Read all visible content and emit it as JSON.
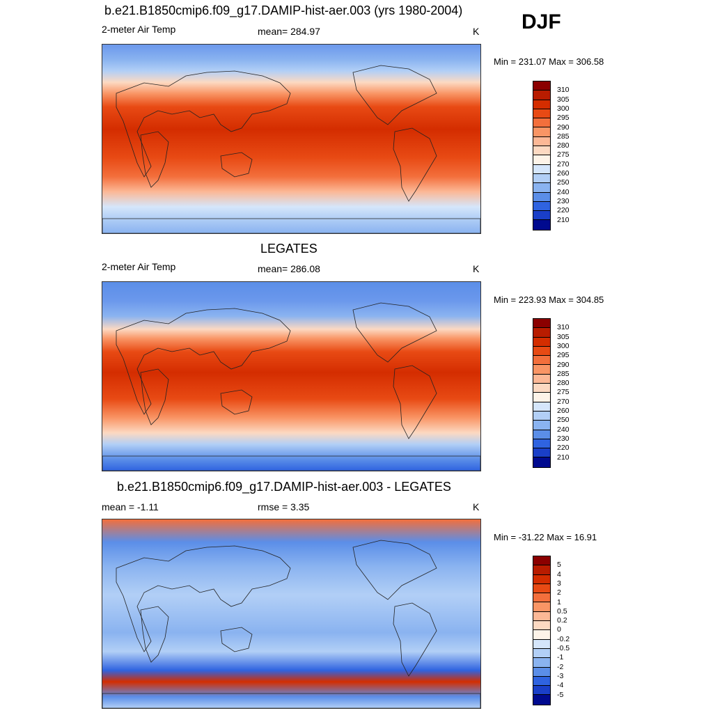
{
  "season": "DJF",
  "panels": [
    {
      "id": "model",
      "title": "b.e21.B1850cmip6.f09_g17.DAMIP-hist-aer.003 (yrs 1980-2004)",
      "left_label": "2-meter Air Temp",
      "center_label": "mean= 284.97",
      "units": "K",
      "minmax": "Min = 231.07 Max = 306.58"
    },
    {
      "id": "obs",
      "title": "LEGATES",
      "left_label": "2-meter Air Temp",
      "center_label": "mean= 286.08",
      "units": "K",
      "minmax": "Min = 223.93 Max = 304.85"
    },
    {
      "id": "diff",
      "title": "b.e21.B1850cmip6.f09_g17.DAMIP-hist-aer.003 - LEGATES",
      "left_label": "mean =  -1.11",
      "center_label": "rmse =   3.35",
      "units": "K",
      "minmax": "Min = -31.22 Max =  16.91"
    }
  ],
  "colorbars": {
    "abs": {
      "levels": [
        "310",
        "305",
        "300",
        "295",
        "290",
        "285",
        "280",
        "275",
        "270",
        "260",
        "250",
        "240",
        "230",
        "220",
        "210"
      ],
      "colors": [
        "#8b0000",
        "#b81c00",
        "#d42d00",
        "#e84a14",
        "#f36f3c",
        "#f99565",
        "#fcb896",
        "#fcd9c2",
        "#fdf3e8",
        "#d5e6fb",
        "#b2cff6",
        "#8ab3f0",
        "#5b8ee8",
        "#2f63e0",
        "#1a3fc8",
        "#000a8f"
      ]
    },
    "diff": {
      "levels": [
        "5",
        "4",
        "3",
        "2",
        "1",
        "0.5",
        "0.2",
        "0",
        "-0.2",
        "-0.5",
        "-1",
        "-2",
        "-3",
        "-4",
        "-5"
      ],
      "colors": [
        "#8b0000",
        "#b81c00",
        "#d42d00",
        "#e84a14",
        "#f36f3c",
        "#f99565",
        "#fcb896",
        "#fcd9c2",
        "#fdf3e8",
        "#d5e6fb",
        "#b2cff6",
        "#8ab3f0",
        "#5b8ee8",
        "#2f63e0",
        "#1a3fc8",
        "#000a8f"
      ]
    }
  },
  "maps": {
    "model_bands": [
      [
        "#6b98ec",
        0.0
      ],
      [
        "#8ab3f0",
        0.08
      ],
      [
        "#b2cff6",
        0.14
      ],
      [
        "#fcd9c2",
        0.2
      ],
      [
        "#f99565",
        0.26
      ],
      [
        "#e84a14",
        0.33
      ],
      [
        "#d42d00",
        0.45
      ],
      [
        "#e84a14",
        0.6
      ],
      [
        "#f36f3c",
        0.7
      ],
      [
        "#fcb896",
        0.78
      ],
      [
        "#d5e6fb",
        0.86
      ],
      [
        "#b2cff6",
        0.92
      ],
      [
        "#8ab3f0",
        1.0
      ]
    ],
    "obs_bands": [
      [
        "#5b8ee8",
        0.0
      ],
      [
        "#6b98ec",
        0.1
      ],
      [
        "#8ab3f0",
        0.18
      ],
      [
        "#fcd9c2",
        0.25
      ],
      [
        "#f99565",
        0.3
      ],
      [
        "#e84a14",
        0.37
      ],
      [
        "#d42d00",
        0.48
      ],
      [
        "#e84a14",
        0.62
      ],
      [
        "#f99565",
        0.72
      ],
      [
        "#fcd9c2",
        0.8
      ],
      [
        "#b2cff6",
        0.86
      ],
      [
        "#5b8ee8",
        0.94
      ],
      [
        "#2f63e0",
        1.0
      ]
    ],
    "diff_bands": [
      [
        "#f36f3c",
        0.0
      ],
      [
        "#5b8ee8",
        0.12
      ],
      [
        "#8ab3f0",
        0.25
      ],
      [
        "#b2cff6",
        0.4
      ],
      [
        "#8ab3f0",
        0.6
      ],
      [
        "#b2cff6",
        0.7
      ],
      [
        "#2f63e0",
        0.8
      ],
      [
        "#d42d00",
        0.86
      ],
      [
        "#5b8ee8",
        0.94
      ],
      [
        "#b2cff6",
        1.0
      ]
    ]
  }
}
